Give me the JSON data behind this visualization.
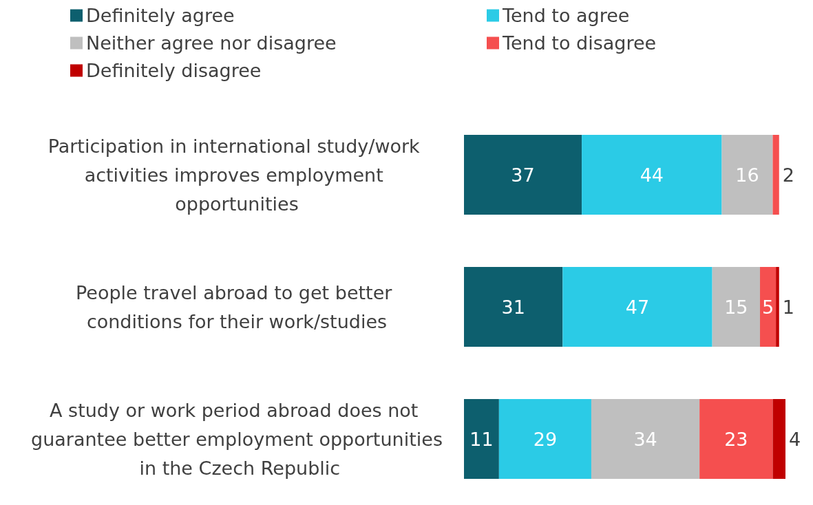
{
  "chart_data": {
    "type": "bar",
    "orientation": "horizontal",
    "stacked": true,
    "data_labels": true,
    "legend": "top left",
    "categories": [
      "Participation in international study/work activities improves employment opportunities",
      "People travel abroad to get better conditions for their work/studies",
      "A study or work period abroad does not guarantee better employment opportunities in the Czech Republic"
    ],
    "series": [
      {
        "name": "Definitely agree",
        "color": "#0d5f6e",
        "values": [
          37,
          31,
          11
        ]
      },
      {
        "name": "Tend to agree",
        "color": "#2bcbe6",
        "values": [
          44,
          47,
          29
        ]
      },
      {
        "name": "Neither agree nor disagree",
        "color": "#bfbfbf",
        "values": [
          16,
          15,
          34
        ]
      },
      {
        "name": "Tend to disagree",
        "color": "#f54f4f",
        "values": [
          2,
          5,
          23
        ]
      },
      {
        "name": "Definitely disagree",
        "color": "#c00000",
        "values": [
          null,
          1,
          4
        ]
      }
    ]
  }
}
